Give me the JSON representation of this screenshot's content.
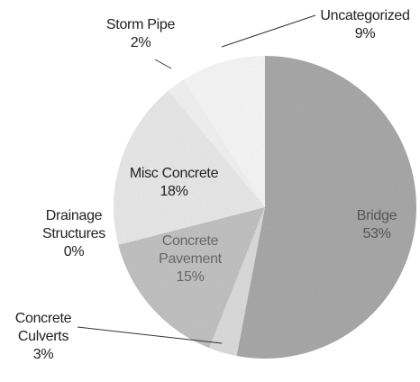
{
  "chart_data": {
    "type": "pie",
    "categories": [
      "Bridge",
      "Concrete Culverts",
      "Concrete Pavement",
      "Drainage Structures",
      "Misc Concrete",
      "Storm Pipe",
      "Uncategorized"
    ],
    "values": [
      53,
      3,
      15,
      0,
      18,
      2,
      9
    ],
    "value_labels": [
      "53%",
      "3%",
      "15%",
      "0%",
      "18%",
      "2%",
      "9%"
    ],
    "colors": [
      "#a9a9a9",
      "#dcdcdc",
      "#c2c2c2",
      "#d0d0d0",
      "#e9e9e9",
      "#f2f2f2",
      "#f7f7f7"
    ]
  }
}
